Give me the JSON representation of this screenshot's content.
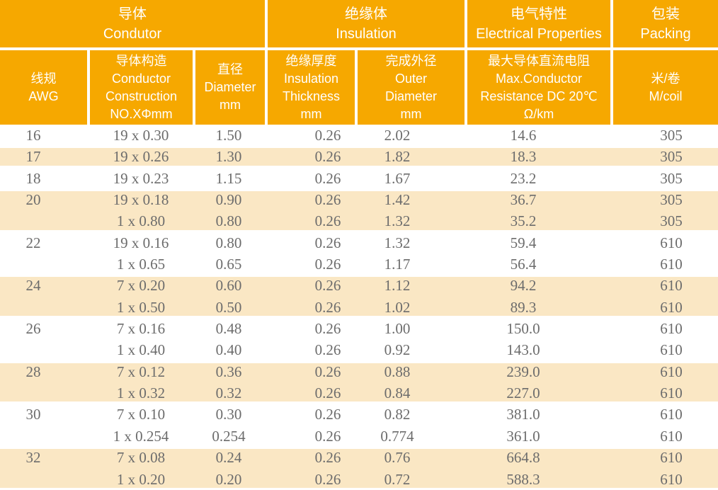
{
  "colors": {
    "header_orange": "#F6A800",
    "row_cream": "#FAE7C4",
    "data_text_gray": "#6c6c6c",
    "header_text": "#ffffff",
    "grid_gap": "#ffffff"
  },
  "header": {
    "groups": [
      {
        "id": "conductor",
        "text": "导体\nCondutor"
      },
      {
        "id": "insulation",
        "text": "绝缘体\nInsulation"
      },
      {
        "id": "electrical",
        "text": "电气特性\nElectrical Properties"
      },
      {
        "id": "packing",
        "text": "包装\nPacking"
      }
    ],
    "columns": [
      {
        "id": "awg",
        "text": "线规\nAWG"
      },
      {
        "id": "construction",
        "text": "导体构造\nConductor\nConstruction\nNO.XΦmm"
      },
      {
        "id": "diameter",
        "text": "直径\nDiameter\nmm"
      },
      {
        "id": "insulation_thickness",
        "text": "绝缘厚度\nInsulation\nThickness\nmm"
      },
      {
        "id": "outer_diameter",
        "text": "完成外径\nOuter\nDiameter\nmm"
      },
      {
        "id": "resistance",
        "text": "最大导体直流电阻\nMax.Conductor\nResistance DC 20℃\nΩ/km"
      },
      {
        "id": "m_coil",
        "text": "米/卷\nM/coil"
      }
    ]
  },
  "table": {
    "column_keys": [
      "awg",
      "construction",
      "diameter_mm",
      "insulation_thickness_mm",
      "outer_diameter_mm",
      "max_resistance_ohm_km",
      "m_per_coil"
    ],
    "groups": [
      {
        "awg": "16",
        "shaded": false,
        "rows": [
          [
            "16",
            "19 x 0.30",
            "1.50",
            "0.26",
            "2.02",
            "14.6",
            "305"
          ]
        ]
      },
      {
        "awg": "17",
        "shaded": true,
        "rows": [
          [
            "17",
            "19 x 0.26",
            "1.30",
            "0.26",
            "1.82",
            "18.3",
            "305"
          ]
        ]
      },
      {
        "awg": "18",
        "shaded": false,
        "rows": [
          [
            "18",
            "19 x 0.23",
            "1.15",
            "0.26",
            "1.67",
            "23.2",
            "305"
          ]
        ]
      },
      {
        "awg": "20",
        "shaded": true,
        "rows": [
          [
            "20",
            "19 x 0.18",
            "0.90",
            "0.26",
            "1.42",
            "36.7",
            "305"
          ],
          [
            "",
            "1 x 0.80",
            "0.80",
            "0.26",
            "1.32",
            "35.2",
            "305"
          ]
        ]
      },
      {
        "awg": "22",
        "shaded": false,
        "rows": [
          [
            "22",
            "19 x 0.16",
            "0.80",
            "0.26",
            "1.32",
            "59.4",
            "610"
          ],
          [
            "",
            "1 x 0.65",
            "0.65",
            "0.26",
            "1.17",
            "56.4",
            "610"
          ]
        ]
      },
      {
        "awg": "24",
        "shaded": true,
        "rows": [
          [
            "24",
            "7 x 0.20",
            "0.60",
            "0.26",
            "1.12",
            "94.2",
            "610"
          ],
          [
            "",
            "1 x 0.50",
            "0.50",
            "0.26",
            "1.02",
            "89.3",
            "610"
          ]
        ]
      },
      {
        "awg": "26",
        "shaded": false,
        "rows": [
          [
            "26",
            "7 x 0.16",
            "0.48",
            "0.26",
            "1.00",
            "150.0",
            "610"
          ],
          [
            "",
            "1 x 0.40",
            "0.40",
            "0.26",
            "0.92",
            "143.0",
            "610"
          ]
        ]
      },
      {
        "awg": "28",
        "shaded": true,
        "rows": [
          [
            "28",
            "7 x 0.12",
            "0.36",
            "0.26",
            "0.88",
            "239.0",
            "610"
          ],
          [
            "",
            "1 x 0.32",
            "0.32",
            "0.26",
            "0.84",
            "227.0",
            "610"
          ]
        ]
      },
      {
        "awg": "30",
        "shaded": false,
        "rows": [
          [
            "30",
            "7 x 0.10",
            "0.30",
            "0.26",
            "0.82",
            "381.0",
            "610"
          ],
          [
            "",
            "1 x 0.254",
            "0.254",
            "0.26",
            "0.774",
            "361.0",
            "610"
          ]
        ]
      },
      {
        "awg": "32",
        "shaded": true,
        "rows": [
          [
            "32",
            "7 x 0.08",
            "0.24",
            "0.26",
            "0.76",
            "664.8",
            "610"
          ],
          [
            "",
            "1 x 0.20",
            "0.20",
            "0.26",
            "0.72",
            "588.3",
            "610"
          ]
        ]
      }
    ]
  }
}
